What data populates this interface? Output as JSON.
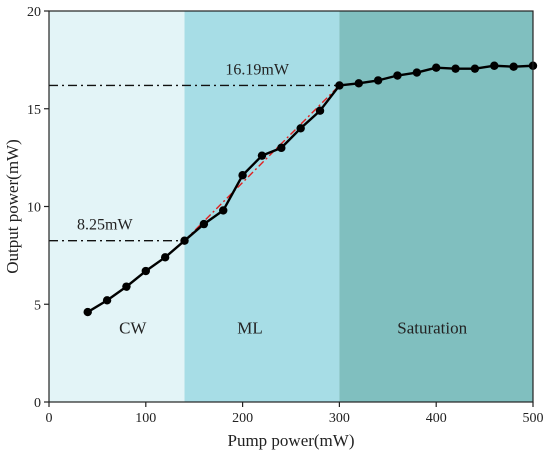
{
  "chart_data": {
    "type": "line",
    "xlabel": "Pump power(mW)",
    "ylabel": "Output power(mW)",
    "xlim": [
      0,
      500
    ],
    "ylim": [
      0,
      20
    ],
    "xticks": [
      0,
      100,
      200,
      300,
      400,
      500
    ],
    "yticks": [
      0,
      5,
      10,
      15,
      20
    ],
    "grid": false,
    "regions": [
      {
        "label": "CW",
        "x_start": 0,
        "x_end": 140,
        "color": "#e3f4f7"
      },
      {
        "label": "ML",
        "x_start": 140,
        "x_end": 300,
        "color": "#a7dde6"
      },
      {
        "label": "Saturation",
        "x_start": 300,
        "x_end": 500,
        "color": "#80bfbf"
      }
    ],
    "series": [
      {
        "color": "#000000",
        "x": [
          40,
          60,
          80,
          100,
          120,
          140,
          160,
          180,
          200,
          220,
          240,
          260,
          280,
          300,
          320,
          340,
          360,
          380,
          400,
          420,
          440,
          460,
          480,
          500
        ],
        "y": [
          4.6,
          5.2,
          5.9,
          6.7,
          7.4,
          8.25,
          9.1,
          9.8,
          11.6,
          12.6,
          13.0,
          14.0,
          14.9,
          16.19,
          16.3,
          16.45,
          16.7,
          16.85,
          17.1,
          17.05,
          17.05,
          17.2,
          17.15,
          17.2
        ]
      }
    ],
    "fit_line": {
      "color": "#e02020",
      "x": [
        140,
        300
      ],
      "y": [
        8.25,
        16.19
      ]
    },
    "reference_lines": [
      {
        "label": "16.19mW",
        "y": 16.19,
        "x_end": 300
      },
      {
        "label": "8.25mW",
        "y": 8.25,
        "x_end": 140
      }
    ]
  }
}
